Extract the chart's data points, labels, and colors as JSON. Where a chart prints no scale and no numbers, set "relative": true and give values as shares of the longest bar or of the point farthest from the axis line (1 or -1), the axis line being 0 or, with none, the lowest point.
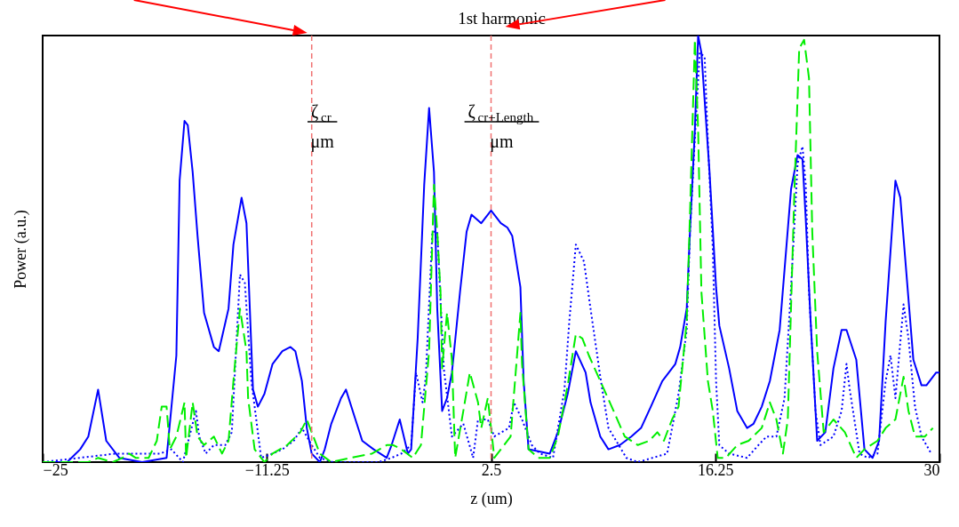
{
  "chart_data": {
    "type": "line",
    "relative": true,
    "xlabel": "z (um)",
    "ylabel": "Power (a.u.)",
    "xlim": [
      -25,
      30
    ],
    "xticks": [
      {
        "value": -25,
        "label": "−25"
      },
      {
        "value": -11.25,
        "label": "−11.25"
      },
      2.5,
      16.25,
      30
    ],
    "grid": false,
    "annotations": [
      "1st harmonic"
    ],
    "ref_lines": [
      {
        "axis": "x",
        "value": -8.5,
        "label": "ζ$_{cr}$ μm",
        "color": "#f07070",
        "line_style": "dashed"
      },
      {
        "axis": "x",
        "value": 2.5,
        "label": "ζ$_{cr+Length}$ μm",
        "color": "#f07070",
        "line_style": "dashed"
      }
    ],
    "series": [
      {
        "color": "#0000ff",
        "line_style": "solid",
        "x": [
          -25,
          -23.5,
          -22.7,
          -22.2,
          -21.6,
          -21.1,
          -20.3,
          -18.9,
          -17.4,
          -16.8,
          -16.6,
          -16.3,
          -16.1,
          -15.8,
          -15.5,
          -15.1,
          -14.5,
          -14.2,
          -13.6,
          -13.3,
          -12.8,
          -12.5,
          -12.1,
          -11.8,
          -11.4,
          -10.9,
          -10.3,
          -9.8,
          -9.5,
          -9.1,
          -8.8,
          -8.5,
          -8.0,
          -7.7,
          -7.3,
          -6.7,
          -6.4,
          -5.9,
          -5.4,
          -4.7,
          -3.9,
          -3.6,
          -3.1,
          -2.6,
          -2.4,
          -2.0,
          -1.6,
          -1.3,
          -1.0,
          -0.8,
          -0.5,
          -0.2,
          0.1,
          0.6,
          1.0,
          1.3,
          1.9,
          2.5,
          3.1,
          3.5,
          3.8,
          4.3,
          4.5,
          4.8,
          6.1,
          6.6,
          7.2,
          7.7,
          8.3,
          8.6,
          9.2,
          9.7,
          10.4,
          11.1,
          11.7,
          12.3,
          13.0,
          13.8,
          14.1,
          14.5,
          14.7,
          15.0,
          15.2,
          15.4,
          15.9,
          16.3,
          16.5,
          17.1,
          17.6,
          18.2,
          18.6,
          19.1,
          19.6,
          20.2,
          20.9,
          21.3,
          21.6,
          21.8,
          22.1,
          22.5,
          23.0,
          23.5,
          24.0,
          24.3,
          24.9,
          25.4,
          25.9,
          26.3,
          26.7,
          27.3,
          27.6,
          28.4,
          28.9,
          29.2,
          29.8,
          30
        ],
        "values": [
          0,
          0,
          0.03,
          0.06,
          0.17,
          0.05,
          0.01,
          0,
          0.01,
          0.25,
          0.66,
          0.8,
          0.79,
          0.68,
          0.53,
          0.35,
          0.27,
          0.26,
          0.36,
          0.51,
          0.62,
          0.56,
          0.17,
          0.13,
          0.16,
          0.23,
          0.26,
          0.27,
          0.26,
          0.19,
          0.08,
          0.02,
          0,
          0.03,
          0.09,
          0.15,
          0.17,
          0.11,
          0.05,
          0.03,
          0.01,
          0.04,
          0.1,
          0.02,
          0.03,
          0.29,
          0.65,
          0.83,
          0.68,
          0.36,
          0.12,
          0.15,
          0.21,
          0.4,
          0.54,
          0.58,
          0.56,
          0.59,
          0.56,
          0.55,
          0.53,
          0.41,
          0.19,
          0.03,
          0.02,
          0.07,
          0.16,
          0.26,
          0.21,
          0.14,
          0.06,
          0.03,
          0.04,
          0.06,
          0.08,
          0.13,
          0.19,
          0.23,
          0.27,
          0.36,
          0.54,
          0.78,
          1,
          0.96,
          0.68,
          0.41,
          0.32,
          0.22,
          0.12,
          0.08,
          0.09,
          0.13,
          0.19,
          0.31,
          0.64,
          0.72,
          0.71,
          0.57,
          0.33,
          0.05,
          0.07,
          0.22,
          0.31,
          0.31,
          0.24,
          0.03,
          0.01,
          0.05,
          0.33,
          0.66,
          0.62,
          0.24,
          0.18,
          0.18,
          0.21,
          0.21
        ]
      },
      {
        "color": "#0000ff",
        "line_style": "dotted",
        "x": [
          -25,
          -20.5,
          -17.8,
          -17.1,
          -16.4,
          -15.6,
          -15.4,
          -15.0,
          -14.5,
          -13.8,
          -13.4,
          -12.9,
          -12.6,
          -12.2,
          -11.6,
          -10.9,
          -10.3,
          -9.6,
          -9.1,
          -8.5,
          -8.0,
          -7.2,
          -5.4,
          -4.4,
          -3.6,
          -3.0,
          -2.4,
          -2.1,
          -1.7,
          -1.5,
          -1.1,
          -0.8,
          -0.6,
          -0.4,
          0.1,
          0.8,
          1.4,
          1.7,
          2.3,
          2.7,
          3.6,
          3.9,
          4.4,
          5.0,
          5.5,
          6.3,
          7.0,
          7.3,
          7.7,
          8.2,
          8.6,
          9.2,
          9.7,
          10.8,
          11.5,
          13.3,
          14.0,
          14.5,
          14.7,
          15.0,
          15.3,
          15.6,
          15.8,
          16.1,
          16.3,
          16.5,
          17.1,
          18.2,
          18.9,
          19.4,
          20.0,
          20.5,
          20.9,
          21.3,
          21.6,
          21.8,
          22.0,
          22.4,
          22.7,
          23.5,
          24.0,
          24.3,
          24.5,
          25.1,
          25.6,
          26.2,
          26.7,
          27.0,
          27.3,
          27.8,
          28.1,
          28.5,
          28.9,
          29.5
        ],
        "values": [
          0,
          0.02,
          0.02,
          0.03,
          0,
          0.12,
          0.06,
          0.02,
          0.04,
          0.04,
          0.07,
          0.44,
          0.42,
          0.19,
          0.01,
          0.02,
          0.03,
          0.05,
          0.08,
          0.04,
          0.01,
          0,
          0,
          0,
          0.01,
          0.02,
          0.04,
          0.21,
          0.14,
          0.2,
          0.54,
          0.54,
          0.38,
          0.22,
          0.06,
          0.09,
          0.01,
          0.1,
          0.1,
          0.06,
          0.08,
          0.14,
          0.1,
          0.04,
          0.02,
          0.01,
          0.17,
          0.33,
          0.51,
          0.47,
          0.36,
          0.2,
          0.08,
          0.01,
          0,
          0.02,
          0.16,
          0.31,
          0.54,
          0.76,
          0.96,
          0.95,
          0.75,
          0.5,
          0.19,
          0.04,
          0.02,
          0.01,
          0.04,
          0.06,
          0.06,
          0.15,
          0.41,
          0.7,
          0.74,
          0.65,
          0.4,
          0.12,
          0.04,
          0.06,
          0.12,
          0.23,
          0.17,
          0.02,
          0.01,
          0.02,
          0.19,
          0.25,
          0.15,
          0.37,
          0.29,
          0.13,
          0.06,
          0.02
        ]
      },
      {
        "color": "#00ee00",
        "line_style": "dashed",
        "x": [
          -25,
          -22.2,
          -21.6,
          -20.7,
          -20.1,
          -19.7,
          -19.3,
          -18.5,
          -18.0,
          -17.7,
          -17.4,
          -17.2,
          -16.8,
          -16.3,
          -16.2,
          -15.8,
          -15.5,
          -15.1,
          -14.5,
          -14.0,
          -13.6,
          -13.3,
          -12.9,
          -12.5,
          -12.4,
          -12.0,
          -11.4,
          -10.9,
          -10.0,
          -9.2,
          -8.8,
          -8.4,
          -8.0,
          -7.3,
          -6.1,
          -4.8,
          -3.9,
          -3.5,
          -3.0,
          -2.3,
          -1.8,
          -1.3,
          -1.0,
          -0.8,
          -0.6,
          -0.5,
          -0.2,
          0.1,
          0.3,
          0.8,
          1.2,
          1.7,
          1.9,
          2.3,
          2.7,
          3.3,
          3.7,
          4.3,
          4.4,
          4.8,
          5.4,
          6.1,
          6.6,
          7.2,
          7.7,
          8.1,
          8.5,
          9.2,
          9.9,
          10.7,
          11.5,
          12.2,
          12.7,
          13.1,
          13.6,
          14.0,
          14.5,
          14.7,
          15.0,
          15.2,
          15.4,
          15.8,
          16.1,
          16.4,
          16.9,
          17.6,
          18.3,
          19.1,
          19.6,
          20.0,
          20.4,
          20.7,
          21.1,
          21.4,
          21.7,
          22.0,
          22.2,
          22.5,
          22.9,
          23.5,
          24.2,
          24.9,
          25.4,
          26.2,
          26.7,
          27.3,
          27.8,
          28.1,
          28.5,
          29.1,
          29.6
        ],
        "values": [
          0,
          0,
          0.01,
          0,
          0.01,
          0.02,
          0.01,
          0.01,
          0.05,
          0.13,
          0.13,
          0.03,
          0.06,
          0.14,
          0.01,
          0.14,
          0.06,
          0.04,
          0.06,
          0.02,
          0.05,
          0.19,
          0.36,
          0.26,
          0.15,
          0.03,
          0,
          0.02,
          0.04,
          0.07,
          0.1,
          0.06,
          0.02,
          0,
          0.01,
          0.02,
          0.04,
          0.04,
          0.03,
          0.01,
          0.04,
          0.26,
          0.65,
          0.54,
          0.4,
          0.22,
          0.35,
          0.24,
          0.01,
          0.12,
          0.21,
          0.14,
          0.08,
          0.15,
          0.01,
          0.04,
          0.06,
          0.35,
          0.23,
          0.03,
          0.01,
          0.01,
          0.06,
          0.18,
          0.3,
          0.29,
          0.25,
          0.19,
          0.13,
          0.06,
          0.04,
          0.05,
          0.07,
          0.05,
          0.1,
          0.13,
          0.33,
          0.58,
          0.99,
          0.78,
          0.4,
          0.19,
          0.12,
          0.01,
          0.01,
          0.04,
          0.05,
          0.08,
          0.14,
          0.1,
          0.02,
          0.1,
          0.63,
          0.97,
          0.99,
          0.9,
          0.54,
          0.26,
          0.07,
          0.1,
          0.07,
          0.01,
          0.03,
          0.05,
          0.08,
          0.1,
          0.2,
          0.12,
          0.06,
          0.06,
          0.08
        ]
      }
    ]
  }
}
